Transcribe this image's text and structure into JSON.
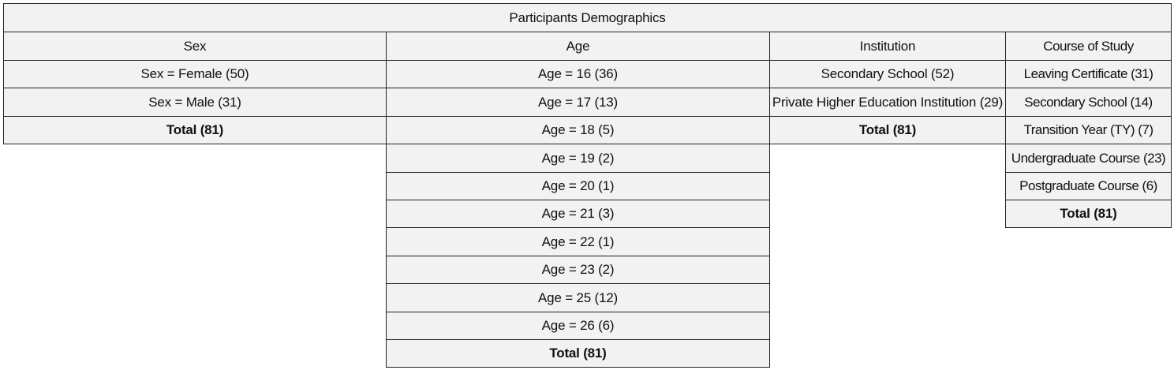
{
  "title": "Participants Demographics",
  "columns": [
    {
      "key": "sex",
      "header": "Sex",
      "rows": [
        "Sex = Female (50)",
        "Sex = Male (31)"
      ],
      "total": "Total (81)"
    },
    {
      "key": "age",
      "header": "Age",
      "rows": [
        "Age = 16 (36)",
        "Age = 17 (13)",
        "Age = 18 (5)",
        "Age = 19 (2)",
        "Age = 20 (1)",
        "Age = 21 (3)",
        "Age = 22 (1)",
        "Age = 23 (2)",
        "Age = 25 (12)",
        "Age = 26 (6)"
      ],
      "total": "Total (81)"
    },
    {
      "key": "institution",
      "header": "Institution",
      "rows": [
        "Secondary School (52)",
        "Private Higher Education Institution (29)"
      ],
      "total": "Total (81)"
    },
    {
      "key": "course",
      "header": "Course of Study",
      "rows": [
        "Leaving Certificate (31)",
        "Secondary School (14)",
        "Transition Year (TY) (7)",
        "Undergraduate Course (23)",
        "Postgraduate Course (6)"
      ],
      "total": "Total (81)"
    }
  ]
}
